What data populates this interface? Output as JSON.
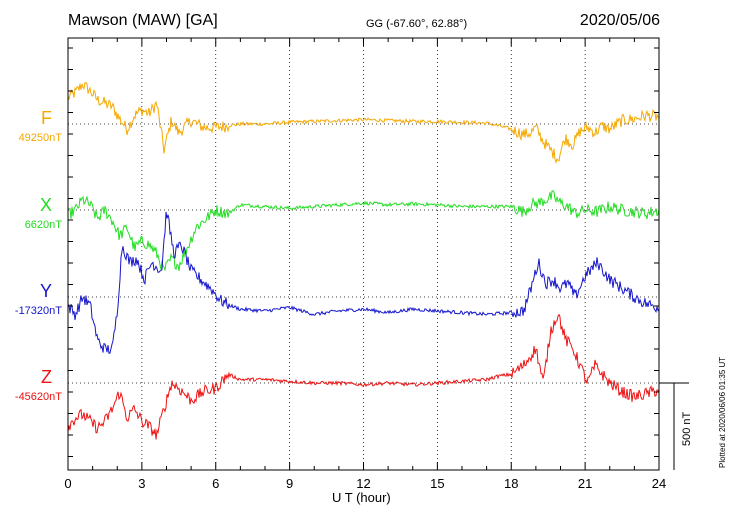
{
  "header": {
    "station": "Mawson (MAW)  [GA]",
    "coords": "GG (-67.60°,  62.88°)",
    "date": "2020/05/06"
  },
  "footer": {
    "plotted": "Plotted at 2020/06/06 01:35 UT",
    "scale_bar": "500 nT"
  },
  "chart_data": {
    "type": "line",
    "xlabel": "U T (hour)",
    "xlim": [
      0,
      24
    ],
    "xticks": [
      0,
      3,
      6,
      9,
      12,
      15,
      18,
      21,
      24
    ],
    "x_minor_step": 1,
    "grid": "dotted at 3-hour intervals and at each component baseline",
    "y_unit": "nT",
    "scale_bar_nT": 500,
    "series": [
      {
        "name": "F",
        "baseline_label": "49250nT",
        "color": "#f5a800",
        "x": [
          0,
          0.3,
          0.6,
          0.9,
          1.2,
          1.5,
          1.8,
          2.1,
          2.4,
          2.7,
          3.0,
          3.3,
          3.6,
          3.9,
          4.2,
          4.5,
          5.0,
          5.5,
          6.0,
          6.5,
          7,
          8,
          9,
          10,
          11,
          12,
          13,
          14,
          15,
          16,
          17,
          17.5,
          18,
          18.5,
          18.8,
          19.0,
          19.3,
          19.6,
          19.9,
          20.2,
          20.5,
          20.8,
          21.1,
          21.4,
          21.7,
          22,
          22.5,
          23,
          23.5,
          24
        ],
        "y": [
          150,
          180,
          230,
          190,
          140,
          120,
          100,
          30,
          -30,
          50,
          80,
          60,
          120,
          -150,
          20,
          -50,
          20,
          -20,
          -20,
          -10,
          0,
          0,
          10,
          15,
          20,
          25,
          20,
          15,
          15,
          10,
          5,
          -10,
          -30,
          -60,
          -50,
          -20,
          -100,
          -150,
          -200,
          -80,
          -120,
          -40,
          -20,
          -50,
          -10,
          -30,
          20,
          30,
          50,
          40
        ]
      },
      {
        "name": "X",
        "baseline_label": "6620nT",
        "color": "#22dd22",
        "x": [
          0,
          0.3,
          0.6,
          0.9,
          1.2,
          1.5,
          1.8,
          2.1,
          2.4,
          2.7,
          3.0,
          3.3,
          3.6,
          3.9,
          4.2,
          4.5,
          4.8,
          5.2,
          5.6,
          6.0,
          6.5,
          7,
          8,
          9,
          10,
          11,
          12,
          13,
          14,
          15,
          16,
          17,
          18,
          18.5,
          18.8,
          19.1,
          19.4,
          19.7,
          20.0,
          20.3,
          20.6,
          21,
          21.5,
          22,
          22.5,
          23,
          23.5,
          24
        ],
        "y": [
          -30,
          0,
          60,
          30,
          -50,
          0,
          -60,
          -150,
          -100,
          -220,
          -180,
          -200,
          -250,
          -350,
          -280,
          -320,
          -230,
          -100,
          -50,
          0,
          -20,
          30,
          20,
          10,
          20,
          30,
          40,
          30,
          35,
          30,
          20,
          20,
          20,
          -10,
          30,
          40,
          60,
          80,
          40,
          20,
          -20,
          0,
          -10,
          20,
          0,
          -10,
          -20,
          0
        ]
      },
      {
        "name": "Y",
        "baseline_label": "-17320nT",
        "color": "#1515cc",
        "x": [
          0,
          0.3,
          0.6,
          0.9,
          1.2,
          1.5,
          1.8,
          2.0,
          2.2,
          2.5,
          2.8,
          3.1,
          3.4,
          3.8,
          4.0,
          4.3,
          4.6,
          5.0,
          5.4,
          5.8,
          6.2,
          6.6,
          7,
          8,
          9,
          10,
          11,
          12,
          13,
          14,
          15,
          16,
          17,
          18,
          18.5,
          18.8,
          19.1,
          19.4,
          19.7,
          20.0,
          20.3,
          20.6,
          21,
          21.5,
          22,
          22.5,
          23,
          23.5,
          24
        ],
        "y": [
          -50,
          -100,
          0,
          -50,
          -250,
          -300,
          -300,
          -80,
          300,
          200,
          220,
          100,
          200,
          150,
          500,
          250,
          300,
          150,
          100,
          50,
          -20,
          -50,
          -70,
          -80,
          -60,
          -100,
          -80,
          -70,
          -90,
          -70,
          -80,
          -90,
          -100,
          -90,
          -80,
          50,
          200,
          80,
          100,
          50,
          80,
          0,
          120,
          200,
          100,
          50,
          0,
          -40,
          -60
        ]
      },
      {
        "name": "Z",
        "baseline_label": "-45620nT",
        "color": "#ee1111",
        "x": [
          0,
          0.3,
          0.6,
          0.9,
          1.2,
          1.5,
          1.8,
          2.1,
          2.4,
          2.7,
          3.0,
          3.3,
          3.6,
          3.9,
          4.2,
          4.5,
          5.0,
          5.5,
          6.0,
          6.5,
          7,
          8,
          9,
          10,
          11,
          12,
          13,
          14,
          15,
          16,
          17,
          17.5,
          18,
          18.5,
          19.0,
          19.3,
          19.6,
          19.9,
          20.2,
          20.5,
          20.8,
          21.1,
          21.4,
          21.7,
          22,
          22.5,
          23,
          23.5,
          24
        ],
        "y": [
          -250,
          -200,
          -180,
          -220,
          -260,
          -220,
          -150,
          -50,
          -200,
          -150,
          -220,
          -250,
          -300,
          -150,
          0,
          -30,
          -100,
          -50,
          -30,
          50,
          20,
          20,
          10,
          0,
          0,
          -10,
          0,
          -10,
          0,
          10,
          20,
          40,
          50,
          100,
          200,
          0,
          300,
          400,
          250,
          200,
          100,
          0,
          100,
          50,
          0,
          -50,
          -80,
          -60,
          -40
        ]
      }
    ]
  }
}
